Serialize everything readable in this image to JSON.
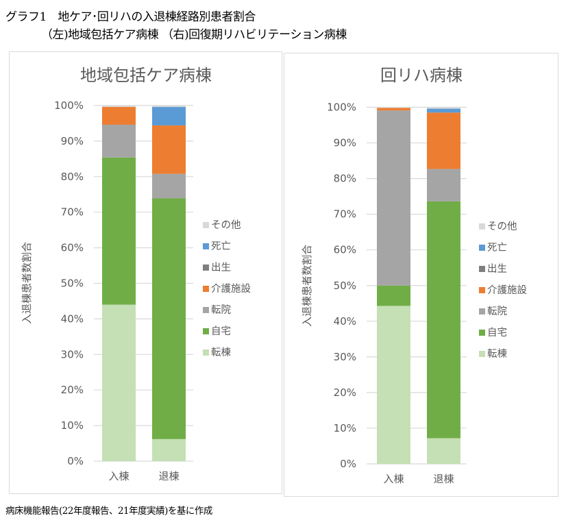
{
  "header": {
    "line1": "グラフ1　地ケア･回リハの入退棟経路別患者割合",
    "line2": "（左)地域包括ケア病棟 （右)回復期リハビリテーション病棟"
  },
  "footer": "病床機能報告(22年度報告、21年度実績)を基に作成",
  "colors": {
    "転棟": "#c5e0b4",
    "自宅": "#70ad47",
    "転院": "#a5a5a5",
    "介護施設": "#ed7d31",
    "出生": "#7f7f7f",
    "死亡": "#5b9bd5",
    "その他": "#d9d9d9",
    "grid": "#d9d9d9",
    "text": "#595959"
  },
  "chart_data": [
    {
      "type": "bar",
      "stacked": true,
      "title": "地域包括ケア病棟",
      "xlabel": "",
      "ylabel": "入退棟患者数割合",
      "categories": [
        "入棟",
        "退棟"
      ],
      "ylim": [
        0,
        100
      ],
      "yticks": [
        "0%",
        "10%",
        "20%",
        "30%",
        "40%",
        "50%",
        "60%",
        "70%",
        "80%",
        "90%",
        "100%"
      ],
      "grid": true,
      "legend_position": "right",
      "legend": [
        "その他",
        "死亡",
        "出生",
        "介護施設",
        "転院",
        "自宅",
        "転棟"
      ],
      "series": [
        {
          "name": "転棟",
          "label": "転棟",
          "values": [
            44.0,
            6.2
          ]
        },
        {
          "name": "自宅",
          "label": "自宅",
          "values": [
            41.4,
            67.7
          ]
        },
        {
          "name": "転院",
          "label": "転院",
          "values": [
            9.2,
            6.9
          ]
        },
        {
          "name": "介護施設",
          "label": "介護施設",
          "values": [
            5.0,
            13.6
          ]
        },
        {
          "name": "出生",
          "label": "出生",
          "values": [
            0,
            0
          ]
        },
        {
          "name": "死亡",
          "label": "死亡",
          "values": [
            0,
            5.2
          ]
        },
        {
          "name": "その他",
          "label": "その他",
          "values": [
            0.4,
            0.4
          ]
        }
      ]
    },
    {
      "type": "bar",
      "stacked": true,
      "title": "回リハ病棟",
      "xlabel": "",
      "ylabel": "入退棟患者数割合",
      "categories": [
        "入棟",
        "退棟"
      ],
      "ylim": [
        0,
        100
      ],
      "yticks": [
        "0%",
        "10%",
        "20%",
        "30%",
        "40%",
        "50%",
        "60%",
        "70%",
        "80%",
        "90%",
        "100%"
      ],
      "grid": true,
      "legend_position": "right",
      "legend": [
        "その他",
        "死亡",
        "出生",
        "介護施設",
        "転院",
        "自宅",
        "転棟"
      ],
      "series": [
        {
          "name": "転棟",
          "label": "転棟",
          "values": [
            44.3,
            7.2
          ]
        },
        {
          "name": "自宅",
          "label": "自宅",
          "values": [
            5.7,
            66.4
          ]
        },
        {
          "name": "転院",
          "label": "転院",
          "values": [
            49.1,
            9.1
          ]
        },
        {
          "name": "介護施設",
          "label": "介護施設",
          "values": [
            0.7,
            15.8
          ]
        },
        {
          "name": "出生",
          "label": "出生",
          "values": [
            0,
            0
          ]
        },
        {
          "name": "死亡",
          "label": "死亡",
          "values": [
            0,
            1.1
          ]
        },
        {
          "name": "その他",
          "label": "その他",
          "values": [
            0.2,
            0.4
          ]
        }
      ]
    }
  ]
}
